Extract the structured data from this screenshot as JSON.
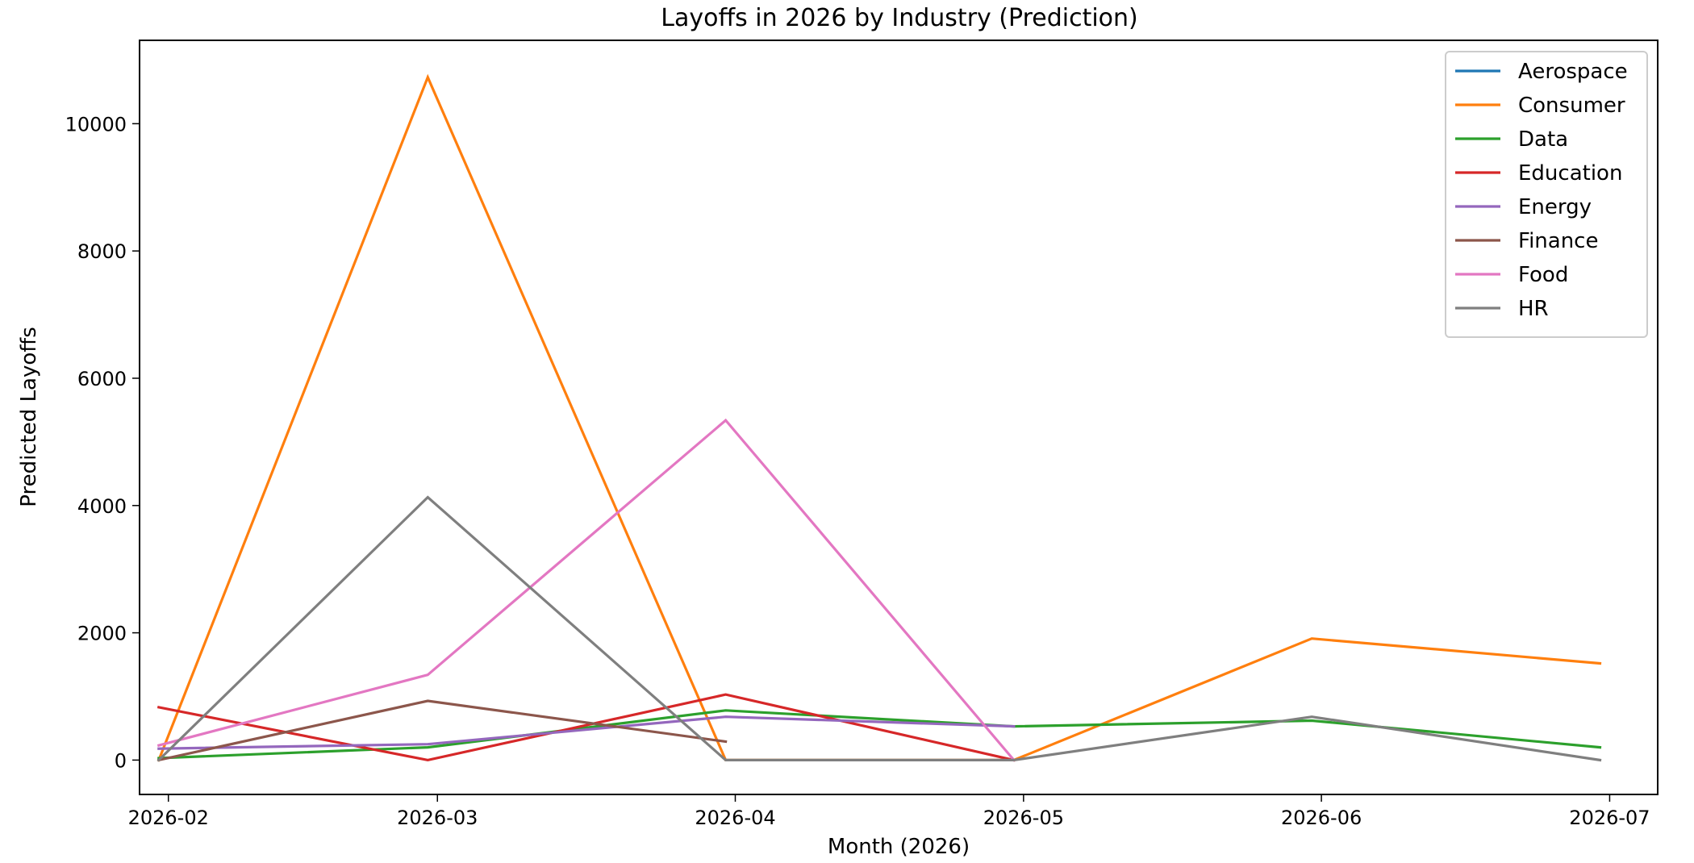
{
  "chart_data": {
    "type": "line",
    "title": "Layoffs in 2026 by Industry (Prediction)",
    "xlabel": "Month (2026)",
    "ylabel": "Predicted Layoffs",
    "x_ticks": [
      "2026-02",
      "2026-03",
      "2026-04",
      "2026-05",
      "2026-06",
      "2026-07"
    ],
    "y_ticks": [
      0,
      2000,
      4000,
      6000,
      8000,
      10000
    ],
    "xlim": [
      "2026-01-29",
      "2026-07-06"
    ],
    "ylim": [
      -540,
      11310
    ],
    "grid": false,
    "legend_position": "top-right",
    "series": [
      {
        "name": "Aerospace",
        "color": "#1f77b4",
        "points": []
      },
      {
        "name": "Consumer",
        "color": "#ff7f0e",
        "points": [
          {
            "x": "2026-01-31",
            "y": 0
          },
          {
            "x": "2026-02-28",
            "y": 10730
          },
          {
            "x": "2026-03-31",
            "y": 0
          },
          {
            "x": "2026-04-30",
            "y": 0
          },
          {
            "x": "2026-05-31",
            "y": 1910
          },
          {
            "x": "2026-06-30",
            "y": 1520
          }
        ]
      },
      {
        "name": "Data",
        "color": "#2ca02c",
        "points": [
          {
            "x": "2026-01-31",
            "y": 30
          },
          {
            "x": "2026-02-28",
            "y": 200
          },
          {
            "x": "2026-03-31",
            "y": 780
          },
          {
            "x": "2026-04-30",
            "y": 530
          },
          {
            "x": "2026-05-31",
            "y": 620
          },
          {
            "x": "2026-06-30",
            "y": 200
          }
        ]
      },
      {
        "name": "Education",
        "color": "#d62728",
        "points": [
          {
            "x": "2026-01-31",
            "y": 830
          },
          {
            "x": "2026-02-28",
            "y": 0
          },
          {
            "x": "2026-03-31",
            "y": 1030
          },
          {
            "x": "2026-04-30",
            "y": 0
          }
        ]
      },
      {
        "name": "Energy",
        "color": "#9467bd",
        "points": [
          {
            "x": "2026-01-31",
            "y": 180
          },
          {
            "x": "2026-02-28",
            "y": 250
          },
          {
            "x": "2026-03-31",
            "y": 680
          },
          {
            "x": "2026-04-30",
            "y": 530
          }
        ]
      },
      {
        "name": "Finance",
        "color": "#8c564b",
        "points": [
          {
            "x": "2026-01-31",
            "y": 0
          },
          {
            "x": "2026-02-28",
            "y": 930
          },
          {
            "x": "2026-03-31",
            "y": 290
          }
        ]
      },
      {
        "name": "Food",
        "color": "#e377c2",
        "points": [
          {
            "x": "2026-01-31",
            "y": 230
          },
          {
            "x": "2026-02-28",
            "y": 1340
          },
          {
            "x": "2026-03-31",
            "y": 5340
          },
          {
            "x": "2026-04-30",
            "y": 0
          }
        ]
      },
      {
        "name": "HR",
        "color": "#7f7f7f",
        "points": [
          {
            "x": "2026-01-31",
            "y": 0
          },
          {
            "x": "2026-02-28",
            "y": 4130
          },
          {
            "x": "2026-03-31",
            "y": 0
          },
          {
            "x": "2026-04-30",
            "y": 0
          },
          {
            "x": "2026-05-31",
            "y": 680
          },
          {
            "x": "2026-06-30",
            "y": 0
          }
        ]
      }
    ]
  }
}
